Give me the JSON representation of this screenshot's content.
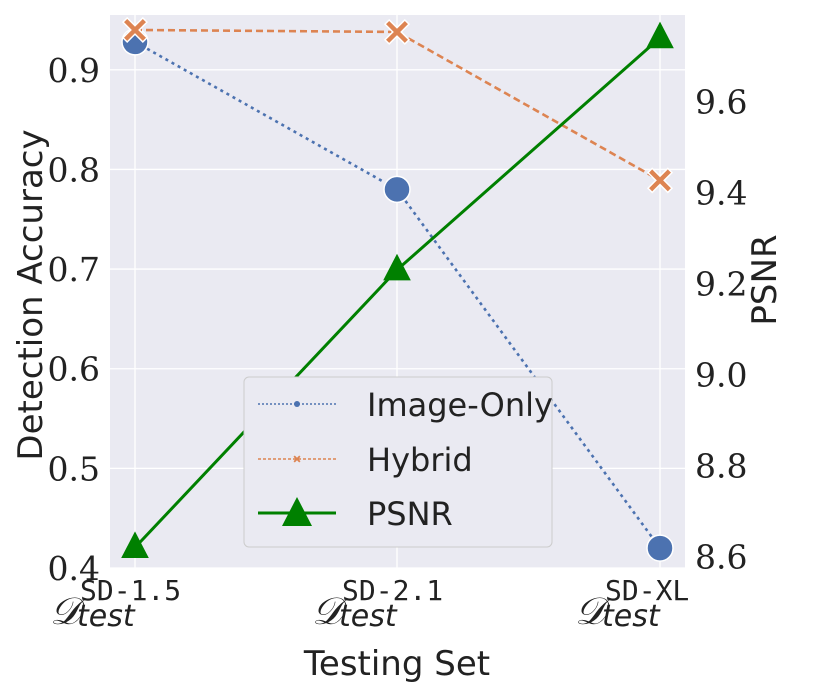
{
  "chart_data": {
    "type": "line",
    "xlabel": "Testing Set",
    "ylabel_left": "Detection Accuracy",
    "ylabel_right": "PSNR",
    "categories": [
      {
        "main": "𝒟",
        "sup": "SD-1.5",
        "sub": "test"
      },
      {
        "main": "𝒟",
        "sup": "SD-2.1",
        "sub": "test"
      },
      {
        "main": "𝒟",
        "sup": "SD-XL",
        "sub": "test"
      }
    ],
    "ylim_left": [
      0.4,
      0.955
    ],
    "yticks_left": [
      "0.4",
      "0.5",
      "0.6",
      "0.7",
      "0.8",
      "0.9"
    ],
    "ylim_right": [
      8.575,
      9.79
    ],
    "yticks_right": [
      "8.6",
      "8.8",
      "9.0",
      "9.2",
      "9.4",
      "9.6"
    ],
    "grid": true,
    "legend_position": "lower-center",
    "series": [
      {
        "name": "Image-Only",
        "axis": "left",
        "values": [
          0.928,
          0.78,
          0.42
        ],
        "color": "#4c72b0",
        "style": "dotted",
        "marker": "circle"
      },
      {
        "name": "Hybrid",
        "axis": "left",
        "values": [
          0.94,
          0.938,
          0.789
        ],
        "color": "#dd8452",
        "style": "dashed",
        "marker": "x"
      },
      {
        "name": "PSNR",
        "axis": "right",
        "values": [
          8.62,
          9.23,
          9.74
        ],
        "color": "#008000",
        "style": "solid",
        "marker": "triangle"
      }
    ]
  }
}
